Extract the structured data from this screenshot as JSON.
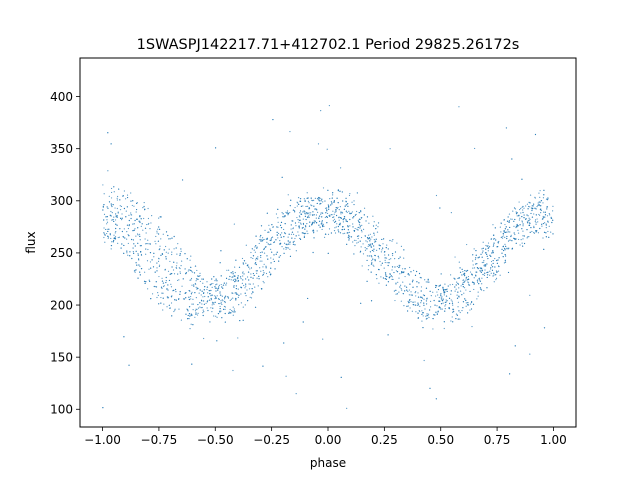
{
  "chart_data": {
    "type": "scatter",
    "title": "1SWASPJ142217.71+412702.1 Period 29825.26172s",
    "xlabel": "phase",
    "ylabel": "flux",
    "xlim": [
      -1.1,
      1.1
    ],
    "ylim": [
      83,
      437
    ],
    "xticks": [
      -1.0,
      -0.75,
      -0.5,
      -0.25,
      0.0,
      0.25,
      0.5,
      0.75,
      1.0
    ],
    "xtick_labels": [
      "−1.00",
      "−0.75",
      "−0.50",
      "−0.25",
      "0.00",
      "0.25",
      "0.50",
      "0.75",
      "1.00"
    ],
    "yticks": [
      100,
      150,
      200,
      250,
      300,
      350,
      400
    ],
    "ytick_labels": [
      "100",
      "150",
      "200",
      "250",
      "300",
      "350",
      "400"
    ],
    "grid": false,
    "legend": "none",
    "marker_color": "#1f77b4",
    "series": [
      {
        "phase": [
          -1.0,
          -0.95,
          -0.9,
          -0.85,
          -0.8,
          -0.75,
          -0.7,
          -0.65,
          -0.6,
          -0.55,
          -0.5,
          -0.45,
          -0.4,
          -0.35,
          -0.3,
          -0.25,
          -0.2,
          -0.15,
          -0.1,
          -0.05,
          0.0,
          0.05,
          0.1,
          0.15,
          0.2,
          0.25,
          0.3,
          0.35,
          0.4,
          0.45,
          0.5,
          0.55,
          0.6,
          0.65,
          0.7,
          0.75,
          0.8,
          0.85,
          0.9,
          0.95,
          1.0
        ],
        "upper_envelope": [
          302,
          305,
          304,
          295,
          288,
          278,
          265,
          248,
          232,
          222,
          220,
          224,
          234,
          248,
          262,
          276,
          287,
          295,
          300,
          302,
          303,
          303,
          298,
          290,
          278,
          266,
          252,
          238,
          226,
          220,
          220,
          223,
          232,
          246,
          260,
          274,
          285,
          294,
          299,
          302,
          302
        ],
        "lower_envelope": [
          268,
          262,
          250,
          236,
          222,
          208,
          198,
          192,
          190,
          190,
          190,
          192,
          198,
          208,
          222,
          236,
          250,
          262,
          270,
          273,
          272,
          272,
          265,
          254,
          240,
          226,
          212,
          200,
          192,
          190,
          190,
          191,
          196,
          206,
          220,
          234,
          248,
          260,
          268,
          272,
          272
        ]
      }
    ]
  }
}
